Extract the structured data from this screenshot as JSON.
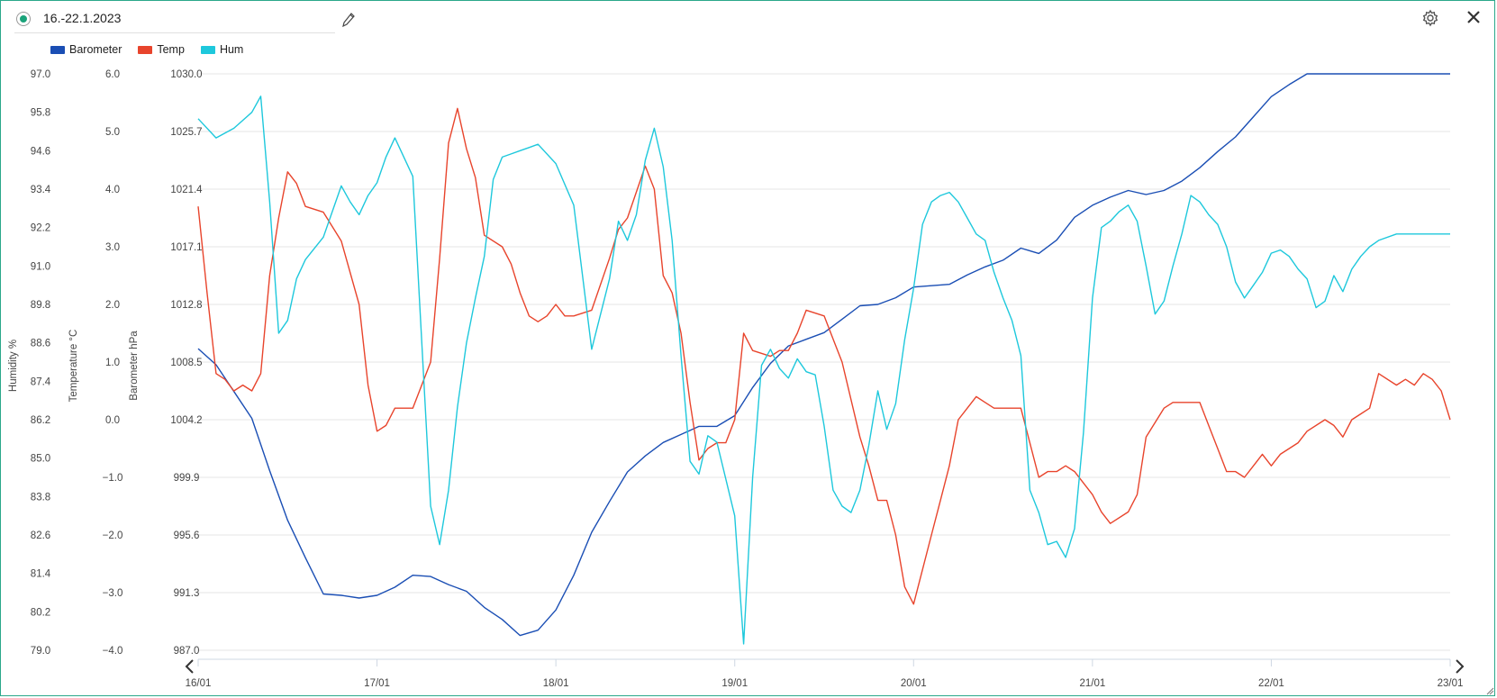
{
  "header": {
    "title": "16.-22.1.2023",
    "edit_icon": "pencil-icon",
    "settings_icon": "gear-icon",
    "close_icon": "close-icon"
  },
  "colors": {
    "frame": "#2aa88a",
    "barometer": "#1a4eb4",
    "temp": "#e8442c",
    "hum": "#1ec8dc",
    "grid": "#e4e4e4"
  },
  "chart_data": {
    "type": "line",
    "legend": {
      "position": "top-left"
    },
    "grid": true,
    "x_ticks": [
      "16/01",
      "17/01",
      "18/01",
      "19/01",
      "20/01",
      "21/01",
      "22/01",
      "23/01"
    ],
    "x_range": [
      "2023-01-16",
      "2023-01-23"
    ],
    "axes": [
      {
        "id": "hum",
        "label": "Humidity %",
        "range": [
          79.0,
          97.0
        ],
        "ticks": [
          "97.0",
          "95.8",
          "94.6",
          "93.4",
          "92.2",
          "91.0",
          "89.8",
          "88.6",
          "87.4",
          "86.2",
          "85.0",
          "83.8",
          "82.6",
          "81.4",
          "80.2",
          "79.0"
        ]
      },
      {
        "id": "temp",
        "label": "Temperature °C",
        "range": [
          -4.0,
          6.0
        ],
        "ticks": [
          "6.0",
          "5.0",
          "4.0",
          "3.0",
          "2.0",
          "1.0",
          "0.0",
          "−1.0",
          "−2.0",
          "−3.0",
          "−4.0"
        ]
      },
      {
        "id": "baro",
        "label": "Barometer hPa",
        "range": [
          987.0,
          1030.0
        ],
        "ticks": [
          "1030.0",
          "1025.7",
          "1021.4",
          "1017.1",
          "1012.8",
          "1008.5",
          "1004.2",
          "999.9",
          "995.6",
          "991.3",
          "987.0"
        ]
      }
    ],
    "series": [
      {
        "name": "Barometer",
        "axis": "baro",
        "color": "#1a4eb4",
        "x": [
          0,
          0.1,
          0.2,
          0.3,
          0.4,
          0.5,
          0.6,
          0.7,
          0.8,
          0.9,
          1.0,
          1.1,
          1.2,
          1.3,
          1.4,
          1.5,
          1.6,
          1.7,
          1.8,
          1.9,
          2.0,
          2.1,
          2.2,
          2.3,
          2.4,
          2.5,
          2.6,
          2.7,
          2.8,
          2.9,
          3.0,
          3.1,
          3.2,
          3.3,
          3.4,
          3.5,
          3.6,
          3.7,
          3.8,
          3.9,
          4.0,
          4.1,
          4.2,
          4.3,
          4.4,
          4.5,
          4.6,
          4.7,
          4.8,
          4.9,
          5.0,
          5.1,
          5.2,
          5.3,
          5.4,
          5.5,
          5.6,
          5.7,
          5.8,
          5.9,
          6.0,
          6.1,
          6.2,
          6.3,
          6.4,
          6.5,
          6.6,
          6.7,
          6.8,
          6.9,
          7.0
        ],
        "y": [
          1009.5,
          1008.3,
          1006.3,
          1004.3,
          1000.4,
          996.7,
          993.9,
          991.2,
          991.1,
          990.9,
          991.1,
          991.7,
          992.6,
          992.5,
          991.9,
          991.4,
          990.2,
          989.3,
          988.1,
          988.5,
          990.0,
          992.6,
          995.8,
          998.1,
          1000.3,
          1001.5,
          1002.5,
          1003.1,
          1003.7,
          1003.7,
          1004.5,
          1006.6,
          1008.4,
          1009.7,
          1010.2,
          1010.7,
          1011.7,
          1012.7,
          1012.8,
          1013.3,
          1014.1,
          1014.2,
          1014.3,
          1015.0,
          1015.6,
          1016.1,
          1017.0,
          1016.6,
          1017.6,
          1019.3,
          1020.2,
          1020.8,
          1021.3,
          1021.0,
          1021.3,
          1022.0,
          1023.0,
          1024.2,
          1025.3,
          1026.8,
          1028.3,
          1029.2,
          1030.0,
          1030.0,
          1030.0,
          1030.0,
          1030.0,
          1030.0,
          1030.0,
          1030.0,
          1030.0
        ]
      },
      {
        "name": "Temp",
        "axis": "temp",
        "color": "#e8442c",
        "x": [
          0,
          0.05,
          0.1,
          0.15,
          0.2,
          0.25,
          0.3,
          0.35,
          0.4,
          0.45,
          0.5,
          0.55,
          0.6,
          0.7,
          0.8,
          0.9,
          0.95,
          1.0,
          1.05,
          1.1,
          1.2,
          1.3,
          1.35,
          1.4,
          1.45,
          1.5,
          1.55,
          1.6,
          1.7,
          1.75,
          1.8,
          1.85,
          1.9,
          1.95,
          2.0,
          2.05,
          2.1,
          2.2,
          2.3,
          2.35,
          2.4,
          2.5,
          2.55,
          2.6,
          2.65,
          2.7,
          2.75,
          2.8,
          2.85,
          2.9,
          2.95,
          3.0,
          3.05,
          3.1,
          3.2,
          3.25,
          3.3,
          3.35,
          3.4,
          3.5,
          3.55,
          3.6,
          3.7,
          3.75,
          3.8,
          3.85,
          3.9,
          3.95,
          4.0,
          4.05,
          4.1,
          4.15,
          4.2,
          4.25,
          4.3,
          4.35,
          4.4,
          4.45,
          4.5,
          4.55,
          4.6,
          4.7,
          4.75,
          4.8,
          4.85,
          4.9,
          5.0,
          5.05,
          5.1,
          5.2,
          5.25,
          5.3,
          5.4,
          5.45,
          5.5,
          5.55,
          5.6,
          5.65,
          5.7,
          5.75,
          5.8,
          5.85,
          5.9,
          5.95,
          6.0,
          6.05,
          6.1,
          6.15,
          6.2,
          6.3,
          6.35,
          6.4,
          6.45,
          6.5,
          6.55,
          6.6,
          6.7,
          6.75,
          6.8,
          6.85,
          6.9,
          6.95,
          7.0
        ],
        "y": [
          3.7,
          2.2,
          0.8,
          0.7,
          0.5,
          0.6,
          0.5,
          0.8,
          2.5,
          3.5,
          4.3,
          4.1,
          3.7,
          3.6,
          3.1,
          2.0,
          0.6,
          -0.2,
          -0.1,
          0.2,
          0.2,
          1.0,
          2.8,
          4.8,
          5.4,
          4.7,
          4.2,
          3.2,
          3.0,
          2.7,
          2.2,
          1.8,
          1.7,
          1.8,
          2.0,
          1.8,
          1.8,
          1.9,
          2.8,
          3.3,
          3.5,
          4.4,
          4.0,
          2.5,
          2.2,
          1.5,
          0.3,
          -0.7,
          -0.5,
          -0.4,
          -0.4,
          0.0,
          1.5,
          1.2,
          1.1,
          1.2,
          1.2,
          1.5,
          1.9,
          1.8,
          1.4,
          1.0,
          -0.3,
          -0.8,
          -1.4,
          -1.4,
          -2.0,
          -2.9,
          -3.2,
          -2.6,
          -2.0,
          -1.4,
          -0.8,
          0.0,
          0.2,
          0.4,
          0.3,
          0.2,
          0.2,
          0.2,
          0.2,
          -1.0,
          -0.9,
          -0.9,
          -0.8,
          -0.9,
          -1.3,
          -1.6,
          -1.8,
          -1.6,
          -1.3,
          -0.3,
          0.2,
          0.3,
          0.3,
          0.3,
          0.3,
          -0.1,
          -0.5,
          -0.9,
          -0.9,
          -1.0,
          -0.8,
          -0.6,
          -0.8,
          -0.6,
          -0.5,
          -0.4,
          -0.2,
          0.0,
          -0.1,
          -0.3,
          0.0,
          0.1,
          0.2,
          0.8,
          0.6,
          0.7,
          0.6,
          0.8,
          0.7,
          0.5,
          0.0
        ]
      },
      {
        "name": "Hum",
        "axis": "hum",
        "color": "#1ec8dc",
        "x": [
          0,
          0.1,
          0.2,
          0.3,
          0.35,
          0.4,
          0.45,
          0.5,
          0.55,
          0.6,
          0.7,
          0.8,
          0.85,
          0.9,
          0.95,
          1.0,
          1.05,
          1.1,
          1.2,
          1.3,
          1.35,
          1.4,
          1.45,
          1.5,
          1.55,
          1.6,
          1.65,
          1.7,
          1.75,
          1.8,
          1.85,
          1.9,
          2.0,
          2.1,
          2.2,
          2.3,
          2.35,
          2.4,
          2.45,
          2.5,
          2.55,
          2.6,
          2.65,
          2.7,
          2.75,
          2.8,
          2.85,
          2.9,
          3.0,
          3.05,
          3.1,
          3.15,
          3.2,
          3.25,
          3.3,
          3.35,
          3.4,
          3.45,
          3.5,
          3.55,
          3.6,
          3.65,
          3.7,
          3.75,
          3.8,
          3.85,
          3.9,
          3.95,
          4.0,
          4.05,
          4.1,
          4.15,
          4.2,
          4.25,
          4.3,
          4.35,
          4.4,
          4.45,
          4.5,
          4.55,
          4.6,
          4.65,
          4.7,
          4.75,
          4.8,
          4.85,
          4.9,
          4.95,
          5.0,
          5.05,
          5.1,
          5.15,
          5.2,
          5.25,
          5.3,
          5.35,
          5.4,
          5.45,
          5.5,
          5.55,
          5.6,
          5.65,
          5.7,
          5.75,
          5.8,
          5.85,
          5.9,
          5.95,
          6.0,
          6.05,
          6.1,
          6.15,
          6.2,
          6.25,
          6.3,
          6.35,
          6.4,
          6.45,
          6.5,
          6.55,
          6.6,
          6.7,
          6.8,
          6.9,
          7.0
        ],
        "y": [
          95.6,
          95.0,
          95.3,
          95.8,
          96.3,
          93.0,
          88.9,
          89.3,
          90.6,
          91.2,
          91.9,
          93.5,
          93.0,
          92.6,
          93.2,
          93.6,
          94.4,
          95.0,
          93.8,
          83.5,
          82.3,
          84.0,
          86.6,
          88.6,
          90.0,
          91.3,
          93.7,
          94.4,
          94.5,
          94.6,
          94.7,
          94.8,
          94.2,
          92.9,
          88.4,
          90.6,
          92.4,
          91.8,
          92.6,
          94.3,
          95.3,
          94.1,
          91.8,
          88.2,
          84.9,
          84.5,
          85.7,
          85.5,
          83.2,
          79.2,
          84.4,
          87.9,
          88.4,
          87.8,
          87.5,
          88.1,
          87.7,
          87.6,
          86.0,
          84.0,
          83.5,
          83.3,
          84.0,
          85.4,
          87.1,
          85.9,
          86.7,
          88.7,
          90.3,
          92.3,
          93.0,
          93.2,
          93.3,
          93.0,
          92.5,
          92.0,
          91.8,
          90.8,
          90.0,
          89.3,
          88.2,
          84.0,
          83.3,
          82.3,
          82.4,
          81.9,
          82.8,
          85.8,
          90.0,
          92.2,
          92.4,
          92.7,
          92.9,
          92.4,
          91.0,
          89.5,
          89.9,
          91.0,
          92.0,
          93.2,
          93.0,
          92.6,
          92.3,
          91.6,
          90.5,
          90.0,
          90.4,
          90.8,
          91.4,
          91.5,
          91.3,
          90.9,
          90.6,
          89.7,
          89.9,
          90.7,
          90.2,
          90.9,
          91.3,
          91.6,
          91.8,
          92.0,
          92.0,
          92.0,
          92.0
        ]
      }
    ]
  }
}
